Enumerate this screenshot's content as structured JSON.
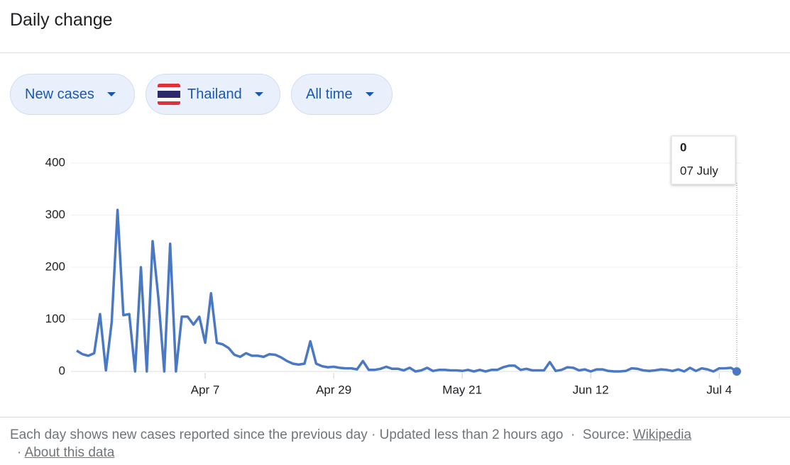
{
  "header": {
    "title": "Daily change"
  },
  "filters": [
    "New cases",
    "Thailand",
    "All time"
  ],
  "chart_data": {
    "type": "line",
    "categories": [
      null,
      null,
      null,
      null,
      null,
      null,
      null,
      null,
      null,
      null,
      null,
      null,
      null,
      null,
      null,
      null,
      null,
      null,
      null,
      null,
      null,
      null,
      "Apr 7",
      null,
      null,
      null,
      null,
      null,
      null,
      null,
      null,
      null,
      null,
      null,
      null,
      null,
      null,
      null,
      null,
      null,
      null,
      null,
      null,
      null,
      "Apr 29",
      null,
      null,
      null,
      null,
      null,
      null,
      null,
      null,
      null,
      null,
      null,
      null,
      null,
      null,
      null,
      null,
      null,
      null,
      null,
      null,
      null,
      "May 21",
      null,
      null,
      null,
      null,
      null,
      null,
      null,
      null,
      null,
      null,
      null,
      null,
      null,
      null,
      null,
      null,
      null,
      null,
      null,
      null,
      null,
      "Jun 12",
      null,
      null,
      null,
      null,
      null,
      null,
      null,
      null,
      null,
      null,
      null,
      null,
      null,
      null,
      null,
      null,
      null,
      null,
      null,
      null,
      null,
      "Jul 4",
      null,
      null,
      null
    ],
    "values": [
      40,
      33,
      30,
      35,
      110,
      2,
      95,
      310,
      108,
      110,
      0,
      200,
      0,
      250,
      140,
      0,
      245,
      0,
      105,
      105,
      90,
      105,
      55,
      150,
      55,
      52,
      45,
      32,
      28,
      35,
      30,
      30,
      28,
      33,
      32,
      27,
      20,
      15,
      13,
      15,
      58,
      15,
      10,
      8,
      9,
      7,
      6,
      6,
      4,
      20,
      3,
      3,
      5,
      9,
      5,
      5,
      2,
      7,
      0,
      2,
      7,
      1,
      3,
      3,
      2,
      2,
      1,
      3,
      0,
      3,
      0,
      3,
      3,
      8,
      11,
      11,
      3,
      5,
      2,
      2,
      2,
      18,
      1,
      3,
      8,
      7,
      2,
      4,
      0,
      4,
      4,
      1,
      0,
      0,
      1,
      6,
      5,
      2,
      1,
      2,
      4,
      3,
      1,
      4,
      0,
      7,
      1,
      6,
      4,
      0,
      6,
      6,
      7,
      0
    ],
    "color": "#4a78c2",
    "ylim": [
      0,
      400
    ],
    "yticks": [
      0,
      100,
      200,
      300,
      400
    ],
    "grid": true,
    "tooltip_date": "07 July"
  },
  "footer": {
    "note": "Each day shows new cases reported since the previous day",
    "separator": "·",
    "updated": "Updated less than 2 hours ago",
    "source_label": "Source:",
    "source_link": "Wikipedia",
    "about": "About this data"
  }
}
